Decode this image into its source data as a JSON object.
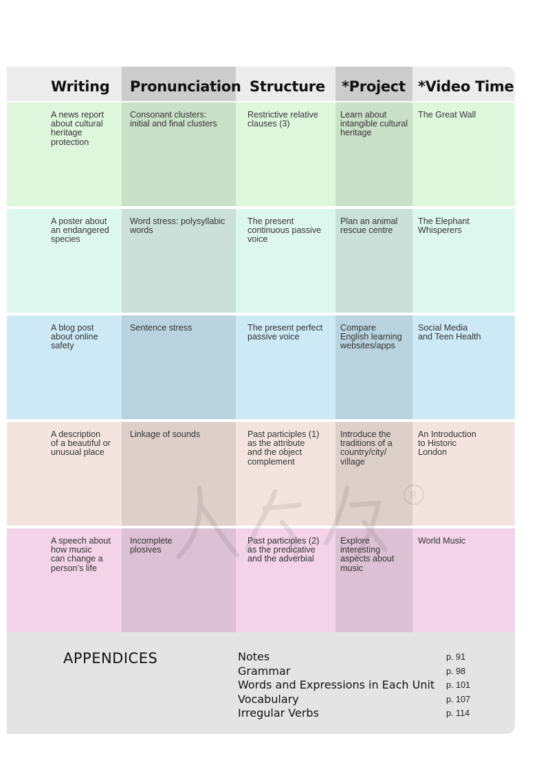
{
  "header": {
    "writing": "Writing",
    "pronunciation": "Pronunciation",
    "structure": "Structure",
    "project": "*Project",
    "video_time": "*Video Time"
  },
  "rows": [
    {
      "color": "#def7dc",
      "writing": "A news report\nabout cultural\nheritage\nprotection",
      "pronunciation": "Consonant clusters:\ninitial and final clusters",
      "structure": "Restrictive relative\nclauses (3)",
      "project": "Learn about\nintangible cultural\nheritage",
      "video": "The Great Wall"
    },
    {
      "color": "#def7ee",
      "writing": "A poster about\nan endangered\nspecies",
      "pronunciation": "Word stress: polysyllabic\nwords",
      "structure": "The present\ncontinuous passive\nvoice",
      "project": "Plan an animal\nrescue centre",
      "video": "The Elephant\nWhisperers"
    },
    {
      "color": "#cce9f5",
      "writing": "A blog post\nabout online\nsafety",
      "pronunciation": "Sentence stress",
      "structure": "The present perfect\npassive voice",
      "project": "Compare\nEnglish learning\nwebsites/apps",
      "video": "Social Media\nand Teen Health"
    },
    {
      "color": "#f3e4df",
      "writing": "A description\nof a beautiful or\nunusual place",
      "pronunciation": "Linkage of sounds",
      "structure": "Past participles (1)\nas the attribute\nand the object\ncomplement",
      "project": "Introduce the\ntraditions of a\ncountry/city/\nvillage",
      "video": "An Introduction\nto Historic\nLondon"
    },
    {
      "color": "#f2d3e8",
      "writing": "A speech about\nhow music\ncan change a\nperson’s life",
      "pronunciation": "Incomplete\nplosives",
      "structure": "Past participles (2)\nas the predicative\nand the adverbial",
      "project": "Explore\ninteresting\naspects about\nmusic",
      "video": "World Music"
    }
  ],
  "appendices": {
    "title": "APPENDICES",
    "items": [
      {
        "label": "Notes",
        "page": "p. 91"
      },
      {
        "label": "Grammar",
        "page": "p. 98"
      },
      {
        "label": "Words and Expressions in Each Unit",
        "page": "p. 101"
      },
      {
        "label": "Vocabulary",
        "page": "p. 107"
      },
      {
        "label": "Irregular Verbs",
        "page": "p. 114"
      }
    ]
  },
  "colors": {
    "header_bg": "#ececec",
    "header_shade": "#cccccc",
    "appendix_bg": "#e4e4e4"
  }
}
